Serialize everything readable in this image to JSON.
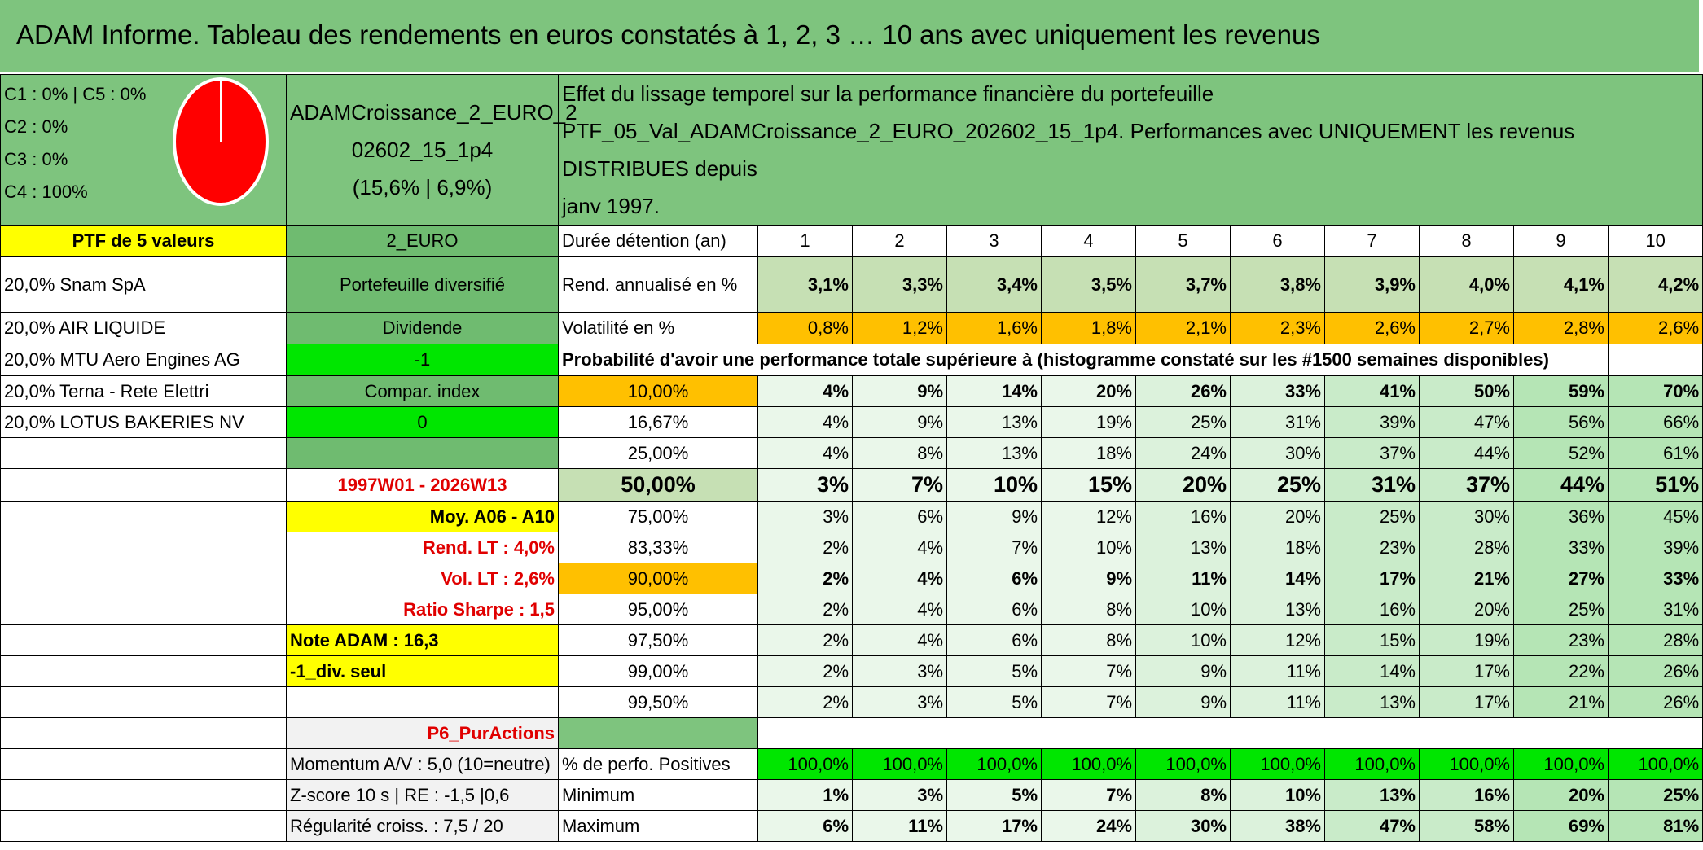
{
  "title": "ADAM Informe. Tableau des rendements en euros constatés à 1, 2, 3 … 10 ans avec uniquement les revenus",
  "allocation": {
    "lines": [
      "C1 : 0% | C5 : 0%",
      "C2 : 0%",
      "C3 : 0%",
      "C4 : 100%"
    ],
    "pie_color": "#ff0000"
  },
  "fund": {
    "name_line1": "ADAMCroissance_2_EURO_2",
    "name_line2": "02602_15_1p4",
    "stats": "(15,6% | 6,9%)"
  },
  "description": {
    "line1": "Effet du lissage temporel sur la performance financière du portefeuille",
    "line2": "PTF_05_Val_ADAMCroissance_2_EURO_202602_15_1p4. Performances avec UNIQUEMENT les revenus DISTRIBUES depuis",
    "line3": "janv 1997."
  },
  "left_col": [
    "PTF de 5 valeurs",
    "20,0% Snam SpA",
    "20,0% AIR LIQUIDE",
    "20,0% MTU Aero Engines AG",
    "20,0% Terna - Rete Elettri",
    "20,0% LOTUS BAKERIES NV"
  ],
  "mid_col": {
    "currency": "2_EURO",
    "portfolio_type": "Portefeuille diversifié",
    "dividend_label": "Dividende",
    "dividend_value": "-1",
    "compar_label": "Compar. index",
    "compar_value": "0",
    "period": "1997W01 - 2026W13",
    "moy": "Moy. A06 - A10",
    "rend_lt": "Rend. LT : 4,0%",
    "vol_lt": "Vol. LT : 2,6%",
    "sharpe": "Ratio Sharpe : 1,5",
    "note": "Note ADAM : 16,3",
    "div_seul": "-1_div. seul",
    "p6": "P6_PurActions",
    "momentum": "Momentum A/V : 5,0 (10=neutre)",
    "zscore": "Z-score 10 s | RE : -1,5 |0,6",
    "regularite": "Régularité croiss. : 7,5 / 20"
  },
  "table": {
    "duration_label": "Durée détention (an)",
    "years": [
      "1",
      "2",
      "3",
      "4",
      "5",
      "6",
      "7",
      "8",
      "9",
      "10"
    ],
    "rend_label": "Rend. annualisé en %",
    "rend": [
      "3,1%",
      "3,3%",
      "3,4%",
      "3,5%",
      "3,7%",
      "3,8%",
      "3,9%",
      "4,0%",
      "4,1%",
      "4,2%"
    ],
    "vol_label": "Volatilité en %",
    "vol": [
      "0,8%",
      "1,2%",
      "1,6%",
      "1,8%",
      "2,1%",
      "2,3%",
      "2,6%",
      "2,7%",
      "2,8%",
      "2,6%"
    ],
    "prob_label": "Probabilité d'avoir une performance totale supérieure à (histogramme constaté sur les #1500 semaines disponibles)",
    "prob_rows": [
      {
        "pct": "10,00%",
        "vals": [
          "4%",
          "9%",
          "14%",
          "20%",
          "26%",
          "33%",
          "41%",
          "50%",
          "59%",
          "70%"
        ]
      },
      {
        "pct": "16,67%",
        "vals": [
          "4%",
          "9%",
          "13%",
          "19%",
          "25%",
          "31%",
          "39%",
          "47%",
          "56%",
          "66%"
        ]
      },
      {
        "pct": "25,00%",
        "vals": [
          "4%",
          "8%",
          "13%",
          "18%",
          "24%",
          "30%",
          "37%",
          "44%",
          "52%",
          "61%"
        ]
      },
      {
        "pct": "50,00%",
        "vals": [
          "3%",
          "7%",
          "10%",
          "15%",
          "20%",
          "25%",
          "31%",
          "37%",
          "44%",
          "51%"
        ]
      },
      {
        "pct": "75,00%",
        "vals": [
          "3%",
          "6%",
          "9%",
          "12%",
          "16%",
          "20%",
          "25%",
          "30%",
          "36%",
          "45%"
        ]
      },
      {
        "pct": "83,33%",
        "vals": [
          "2%",
          "4%",
          "7%",
          "10%",
          "13%",
          "18%",
          "23%",
          "28%",
          "33%",
          "39%"
        ]
      },
      {
        "pct": "90,00%",
        "vals": [
          "2%",
          "4%",
          "6%",
          "9%",
          "11%",
          "14%",
          "17%",
          "21%",
          "27%",
          "33%"
        ]
      },
      {
        "pct": "95,00%",
        "vals": [
          "2%",
          "4%",
          "6%",
          "8%",
          "10%",
          "13%",
          "16%",
          "20%",
          "25%",
          "31%"
        ]
      },
      {
        "pct": "97,50%",
        "vals": [
          "2%",
          "4%",
          "6%",
          "8%",
          "10%",
          "12%",
          "15%",
          "19%",
          "23%",
          "28%"
        ]
      },
      {
        "pct": "99,00%",
        "vals": [
          "2%",
          "3%",
          "5%",
          "7%",
          "9%",
          "11%",
          "14%",
          "17%",
          "22%",
          "26%"
        ]
      },
      {
        "pct": "99,50%",
        "vals": [
          "2%",
          "3%",
          "5%",
          "7%",
          "9%",
          "11%",
          "13%",
          "17%",
          "21%",
          "26%"
        ]
      }
    ],
    "pos_label": "% de perfo. Positives",
    "pos": [
      "100,0%",
      "100,0%",
      "100,0%",
      "100,0%",
      "100,0%",
      "100,0%",
      "100,0%",
      "100,0%",
      "100,0%",
      "100,0%"
    ],
    "min_label": "Minimum",
    "min": [
      "1%",
      "3%",
      "5%",
      "7%",
      "8%",
      "10%",
      "13%",
      "16%",
      "20%",
      "25%"
    ],
    "max_label": "Maximum",
    "max": [
      "6%",
      "11%",
      "17%",
      "24%",
      "30%",
      "38%",
      "47%",
      "58%",
      "69%",
      "81%"
    ]
  }
}
